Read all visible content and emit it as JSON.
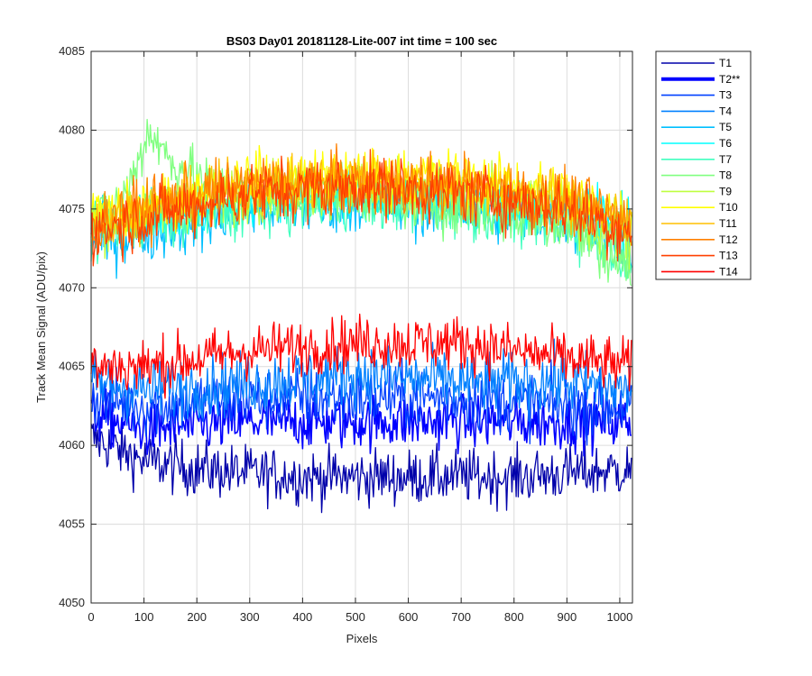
{
  "chart_data": {
    "type": "line",
    "title": "BS03 Day01 20181128-Lite-007 int time = 100 sec",
    "xlabel": "Pixels",
    "ylabel": "Track Mean Signal (ADU/pix)",
    "xlim": [
      0,
      1024
    ],
    "ylim": [
      4050,
      4085
    ],
    "xticks": [
      0,
      100,
      200,
      300,
      400,
      500,
      600,
      700,
      800,
      900,
      1000
    ],
    "yticks": [
      4050,
      4055,
      4060,
      4065,
      4070,
      4075,
      4080,
      4085
    ],
    "grid": true,
    "legend_position": "outside-top-right",
    "series": [
      {
        "name": "T1",
        "color": "#0000aa",
        "mean_profile": [
          [
            0,
            4060.5
          ],
          [
            100,
            4059
          ],
          [
            200,
            4058.5
          ],
          [
            400,
            4058
          ],
          [
            600,
            4058
          ],
          [
            800,
            4058
          ],
          [
            1023,
            4058.5
          ]
        ],
        "noise_amplitude": 1.6
      },
      {
        "name": "T2**",
        "color": "#0000ff",
        "highlighted": true,
        "mean_profile": [
          [
            0,
            4062
          ],
          [
            100,
            4061
          ],
          [
            300,
            4061.5
          ],
          [
            500,
            4061.5
          ],
          [
            700,
            4061.5
          ],
          [
            900,
            4061.5
          ],
          [
            1023,
            4061.5
          ]
        ],
        "noise_amplitude": 1.6
      },
      {
        "name": "T3",
        "color": "#0040ff",
        "mean_profile": [
          [
            0,
            4063
          ],
          [
            100,
            4062.5
          ],
          [
            300,
            4063
          ],
          [
            500,
            4063
          ],
          [
            700,
            4063
          ],
          [
            900,
            4062.5
          ],
          [
            1023,
            4062.5
          ]
        ],
        "noise_amplitude": 1.8
      },
      {
        "name": "T4",
        "color": "#0080ff",
        "mean_profile": [
          [
            0,
            4064
          ],
          [
            100,
            4063.5
          ],
          [
            300,
            4064
          ],
          [
            500,
            4064.5
          ],
          [
            700,
            4064
          ],
          [
            900,
            4064
          ],
          [
            1023,
            4063.5
          ]
        ],
        "noise_amplitude": 1.8
      },
      {
        "name": "T5",
        "color": "#00bfff",
        "mean_profile": [
          [
            0,
            4073
          ],
          [
            100,
            4073.5
          ],
          [
            300,
            4075
          ],
          [
            500,
            4075.5
          ],
          [
            700,
            4075
          ],
          [
            900,
            4074.5
          ],
          [
            1023,
            4073
          ]
        ],
        "noise_amplitude": 1.8
      },
      {
        "name": "T6",
        "color": "#00ffff",
        "mean_profile": [
          [
            0,
            4074
          ],
          [
            100,
            4074.5
          ],
          [
            300,
            4075.5
          ],
          [
            500,
            4076
          ],
          [
            700,
            4075.5
          ],
          [
            900,
            4075
          ],
          [
            1023,
            4074
          ]
        ],
        "noise_amplitude": 1.6
      },
      {
        "name": "T7",
        "color": "#40ffbf",
        "mean_profile": [
          [
            0,
            4073.5
          ],
          [
            100,
            4074
          ],
          [
            300,
            4075
          ],
          [
            500,
            4075.5
          ],
          [
            700,
            4075
          ],
          [
            900,
            4074
          ],
          [
            1023,
            4072
          ]
        ],
        "noise_amplitude": 1.6
      },
      {
        "name": "T8",
        "color": "#80ff80",
        "mean_profile": [
          [
            0,
            4074
          ],
          [
            60,
            4075.5
          ],
          [
            110,
            4080
          ],
          [
            150,
            4078
          ],
          [
            250,
            4076
          ],
          [
            500,
            4076
          ],
          [
            700,
            4075
          ],
          [
            900,
            4074
          ],
          [
            1023,
            4071
          ]
        ],
        "noise_amplitude": 1.6
      },
      {
        "name": "T9",
        "color": "#bfff40",
        "mean_profile": [
          [
            0,
            4074
          ],
          [
            100,
            4075
          ],
          [
            300,
            4076
          ],
          [
            500,
            4076.5
          ],
          [
            700,
            4076
          ],
          [
            900,
            4075
          ],
          [
            1023,
            4073
          ]
        ],
        "noise_amplitude": 1.6
      },
      {
        "name": "T10",
        "color": "#ffff00",
        "mean_profile": [
          [
            0,
            4074.5
          ],
          [
            100,
            4075
          ],
          [
            300,
            4077
          ],
          [
            500,
            4077
          ],
          [
            700,
            4077
          ],
          [
            900,
            4076
          ],
          [
            1023,
            4074.5
          ]
        ],
        "noise_amplitude": 1.6
      },
      {
        "name": "T11",
        "color": "#ffbf00",
        "mean_profile": [
          [
            0,
            4074
          ],
          [
            100,
            4075
          ],
          [
            300,
            4076.5
          ],
          [
            500,
            4077
          ],
          [
            700,
            4076.5
          ],
          [
            900,
            4075.5
          ],
          [
            1023,
            4074
          ]
        ],
        "noise_amplitude": 1.6
      },
      {
        "name": "T12",
        "color": "#ff8000",
        "mean_profile": [
          [
            0,
            4074
          ],
          [
            100,
            4075
          ],
          [
            300,
            4076.5
          ],
          [
            500,
            4076.5
          ],
          [
            700,
            4076.5
          ],
          [
            900,
            4075.5
          ],
          [
            1023,
            4074
          ]
        ],
        "noise_amplitude": 1.8
      },
      {
        "name": "T13",
        "color": "#ff4000",
        "mean_profile": [
          [
            0,
            4073.5
          ],
          [
            100,
            4074.5
          ],
          [
            300,
            4076
          ],
          [
            500,
            4076.5
          ],
          [
            700,
            4076
          ],
          [
            900,
            4075
          ],
          [
            1023,
            4073.5
          ]
        ],
        "noise_amplitude": 1.8
      },
      {
        "name": "T14",
        "color": "#ff0000",
        "mean_profile": [
          [
            0,
            4065
          ],
          [
            100,
            4065
          ],
          [
            300,
            4066
          ],
          [
            500,
            4066.5
          ],
          [
            700,
            4066.5
          ],
          [
            900,
            4065.5
          ],
          [
            1023,
            4065
          ]
        ],
        "noise_amplitude": 1.6
      }
    ]
  }
}
